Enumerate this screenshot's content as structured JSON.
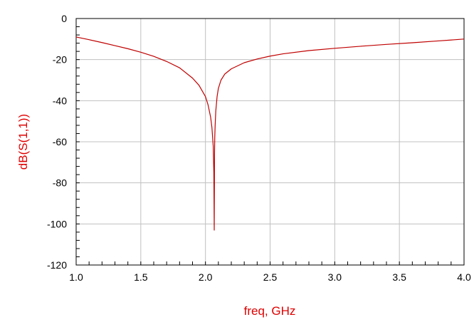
{
  "chart_data": {
    "type": "line",
    "title": "",
    "xlabel": "freq, GHz",
    "ylabel": "dB(S(1,1))",
    "xlim": [
      1.0,
      4.0
    ],
    "ylim": [
      -120,
      0
    ],
    "x_ticks": [
      1.0,
      1.5,
      2.0,
      2.5,
      3.0,
      3.5,
      4.0
    ],
    "x_tick_labels": [
      "1.0",
      "1.5",
      "2.0",
      "2.5",
      "3.0",
      "3.5",
      "4.0"
    ],
    "y_ticks": [
      0,
      -20,
      -40,
      -60,
      -80,
      -100,
      -120
    ],
    "y_tick_labels": [
      "0",
      "-20",
      "-40",
      "-60",
      "-80",
      "-100",
      "-120"
    ],
    "grid": true,
    "label_color": "#e00000",
    "grid_color": "#c0c0c0",
    "series": [
      {
        "color": "#c00000",
        "x": [
          1.0,
          1.1,
          1.2,
          1.3,
          1.4,
          1.5,
          1.6,
          1.7,
          1.8,
          1.9,
          1.95,
          2.0,
          2.02,
          2.04,
          2.05,
          2.06,
          2.065,
          2.068,
          2.07,
          2.072,
          2.075,
          2.08,
          2.09,
          2.1,
          2.12,
          2.15,
          2.2,
          2.3,
          2.4,
          2.5,
          2.6,
          2.8,
          3.0,
          3.2,
          3.4,
          3.6,
          3.8,
          4.0
        ],
        "y": [
          -9.0,
          -10.3,
          -11.7,
          -13.2,
          -14.7,
          -16.4,
          -18.4,
          -20.9,
          -24.0,
          -29.0,
          -32.5,
          -38.0,
          -42.0,
          -48.0,
          -53.0,
          -62.0,
          -75.0,
          -103.0,
          -66.0,
          -58.0,
          -52.0,
          -45.0,
          -38.0,
          -34.0,
          -30.0,
          -27.0,
          -24.5,
          -21.5,
          -19.7,
          -18.3,
          -17.2,
          -15.6,
          -14.5,
          -13.5,
          -12.6,
          -11.8,
          -10.9,
          -10.0
        ]
      }
    ]
  }
}
